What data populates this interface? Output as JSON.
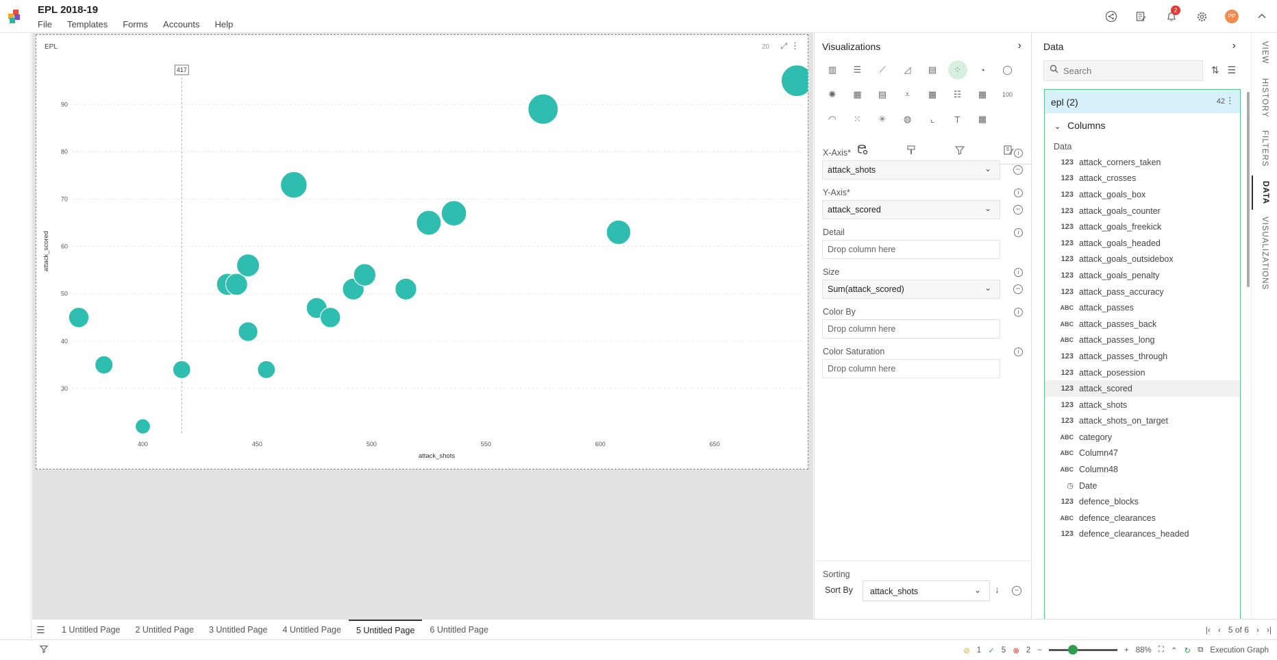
{
  "app": {
    "title": "EPL 2018-19",
    "menu": [
      "File",
      "Templates",
      "Forms",
      "Accounts",
      "Help"
    ],
    "notification_count": "2",
    "avatar_initials": "PP"
  },
  "widget": {
    "title": "EPL",
    "count": "20",
    "crosshair_label": "417"
  },
  "chart_data": {
    "type": "scatter",
    "xlabel": "attack_shots",
    "ylabel": "attack_scored",
    "xlim": [
      369,
      688
    ],
    "ylim": [
      20,
      98
    ],
    "xticks": [
      400,
      450,
      500,
      550,
      600,
      650
    ],
    "yticks": [
      30,
      40,
      50,
      60,
      70,
      80,
      90
    ],
    "grid": true,
    "color": "#2fbdaf",
    "size_by": "attack_scored",
    "points": [
      {
        "x": 372,
        "y": 45
      },
      {
        "x": 383,
        "y": 35
      },
      {
        "x": 400,
        "y": 22
      },
      {
        "x": 417,
        "y": 34
      },
      {
        "x": 437,
        "y": 52
      },
      {
        "x": 441,
        "y": 52
      },
      {
        "x": 446,
        "y": 56
      },
      {
        "x": 446,
        "y": 42
      },
      {
        "x": 454,
        "y": 34
      },
      {
        "x": 466,
        "y": 73
      },
      {
        "x": 476,
        "y": 47
      },
      {
        "x": 482,
        "y": 45
      },
      {
        "x": 492,
        "y": 51
      },
      {
        "x": 497,
        "y": 54
      },
      {
        "x": 515,
        "y": 51
      },
      {
        "x": 525,
        "y": 65
      },
      {
        "x": 536,
        "y": 67
      },
      {
        "x": 575,
        "y": 89
      },
      {
        "x": 608,
        "y": 63
      },
      {
        "x": 686,
        "y": 95
      }
    ]
  },
  "visualizations": {
    "title": "Visualizations",
    "icons": [
      "column-chart-icon",
      "bar-chart-icon",
      "line-chart-icon",
      "area-chart-icon",
      "combo-chart-icon",
      "scatter-chart-icon",
      "pie-chart-icon",
      "donut-chart-icon",
      "radar-chart-icon",
      "pivot-table-icon",
      "detail-table-icon",
      "funnel-chart-icon",
      "table-icon",
      "card-list-icon",
      "grid-icon",
      "kpi-100-icon",
      "gauge-icon",
      "heatmap-icon",
      "network-icon",
      "geo-map-icon",
      "waterfall-icon",
      "text-icon",
      "calculator-icon"
    ],
    "icon_glyphs": [
      "▥",
      "☰",
      "⟋",
      "◿",
      "▤",
      "⁘",
      "◔",
      "◯",
      "✺",
      "▦",
      "▤",
      "⩡",
      "▦",
      "☷",
      "▦",
      "100",
      "◠",
      "⁙",
      "✳",
      "◍",
      "⌞",
      "T",
      "▦"
    ],
    "fields": {
      "x_axis": {
        "label": "X-Axis*",
        "value": "attack_shots"
      },
      "y_axis": {
        "label": "Y-Axis*",
        "value": "attack_scored"
      },
      "detail": {
        "label": "Detail",
        "placeholder": "Drop column here"
      },
      "size": {
        "label": "Size",
        "value": "Sum(attack_scored)"
      },
      "color_by": {
        "label": "Color By",
        "placeholder": "Drop column here"
      },
      "color_saturation": {
        "label": "Color Saturation",
        "placeholder": "Drop column here"
      }
    },
    "sorting": {
      "title": "Sorting",
      "sort_by_label": "Sort By",
      "sort_by_value": "attack_shots"
    }
  },
  "data_panel": {
    "title": "Data",
    "search_placeholder": "Search",
    "dataset_name": "epl (2)",
    "dataset_count": "42",
    "columns_label": "Columns",
    "group_label": "Data",
    "columns": [
      {
        "type": "123",
        "name": "attack_corners_taken"
      },
      {
        "type": "123",
        "name": "attack_crosses"
      },
      {
        "type": "123",
        "name": "attack_goals_box"
      },
      {
        "type": "123",
        "name": "attack_goals_counter"
      },
      {
        "type": "123",
        "name": "attack_goals_freekick"
      },
      {
        "type": "123",
        "name": "attack_goals_headed"
      },
      {
        "type": "123",
        "name": "attack_goals_outsidebox"
      },
      {
        "type": "123",
        "name": "attack_goals_penalty"
      },
      {
        "type": "123",
        "name": "attack_pass_accuracy"
      },
      {
        "type": "ABC",
        "name": "attack_passes"
      },
      {
        "type": "ABC",
        "name": "attack_passes_back"
      },
      {
        "type": "ABC",
        "name": "attack_passes_long"
      },
      {
        "type": "123",
        "name": "attack_passes_through"
      },
      {
        "type": "123",
        "name": "attack_posession"
      },
      {
        "type": "123",
        "name": "attack_scored"
      },
      {
        "type": "123",
        "name": "attack_shots"
      },
      {
        "type": "123",
        "name": "attack_shots_on_target"
      },
      {
        "type": "ABC",
        "name": "category"
      },
      {
        "type": "ABC",
        "name": "Column47"
      },
      {
        "type": "ABC",
        "name": "Column48"
      },
      {
        "type": "◷",
        "name": "Date"
      },
      {
        "type": "123",
        "name": "defence_blocks"
      },
      {
        "type": "ABC",
        "name": "defence_clearances"
      },
      {
        "type": "123",
        "name": "defence_clearances_headed"
      }
    ]
  },
  "right_tabs": [
    "VIEW",
    "HISTORY",
    "FILTERS",
    "DATA",
    "VISUALIZATIONS"
  ],
  "pages": {
    "tabs": [
      "1 Untitled Page",
      "2 Untitled Page",
      "3 Untitled Page",
      "4 Untitled Page",
      "5 Untitled Page",
      "6 Untitled Page"
    ],
    "active_index": 4,
    "indicator": "5 of 6"
  },
  "status": {
    "warnings": "1",
    "ok": "5",
    "errors": "2",
    "zoom": "88%",
    "zoom_fraction": 0.28,
    "execution_graph": "Execution Graph"
  }
}
